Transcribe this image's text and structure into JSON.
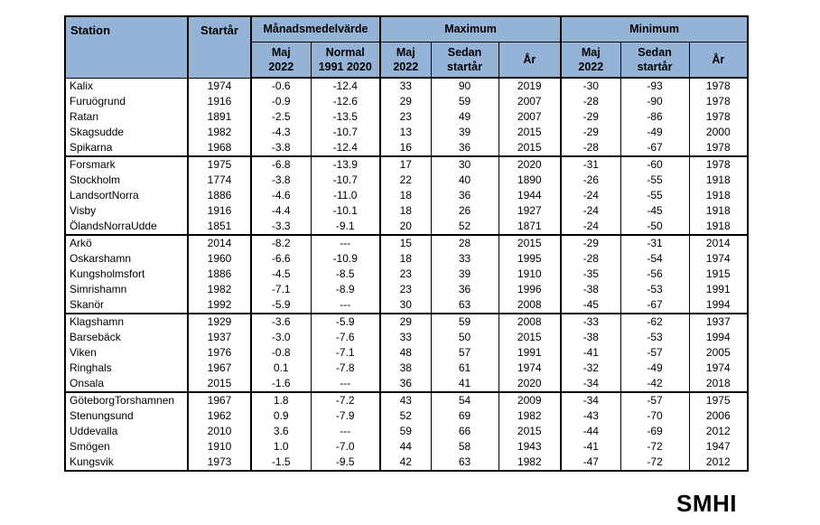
{
  "colors": {
    "header_bg": "#95b3d7",
    "border": "#000000",
    "text": "#000000",
    "page_bg": "#ffffff"
  },
  "logo": {
    "text": "SMHI"
  },
  "table": {
    "header": {
      "station": "Station",
      "start_year": "Startår",
      "groups": [
        {
          "label": "Månadsmedelvärde",
          "subcols": [
            "Maj\n2022",
            "Normal\n1991 2020"
          ]
        },
        {
          "label": "Maximum",
          "subcols": [
            "Maj\n2022",
            "Sedan\nstartår",
            "År"
          ]
        },
        {
          "label": "Minimum",
          "subcols": [
            "Maj\n2022",
            "Sedan\nstartår",
            "År"
          ]
        }
      ]
    }
  },
  "chart_data": {
    "type": "table",
    "columns": [
      "Station",
      "Startår",
      "Månadsmedelvärde Maj 2022",
      "Månadsmedelvärde Normal 1991 2020",
      "Maximum Maj 2022",
      "Maximum Sedan startår",
      "Maximum År",
      "Minimum Maj 2022",
      "Minimum Sedan startår",
      "Minimum År"
    ],
    "group_breaks": [
      5,
      10,
      15,
      20
    ],
    "rows": [
      [
        "Kalix",
        "1974",
        "-0.6",
        "-12.4",
        "33",
        "90",
        "2019",
        "-30",
        "-93",
        "1978"
      ],
      [
        "Furuögrund",
        "1916",
        "-0.9",
        "-12.6",
        "29",
        "59",
        "2007",
        "-28",
        "-90",
        "1978"
      ],
      [
        "Ratan",
        "1891",
        "-2.5",
        "-13.5",
        "23",
        "49",
        "2007",
        "-29",
        "-86",
        "1978"
      ],
      [
        "Skagsudde",
        "1982",
        "-4.3",
        "-10.7",
        "13",
        "39",
        "2015",
        "-29",
        "-49",
        "2000"
      ],
      [
        "Spikarna",
        "1968",
        "-3.8",
        "-12.4",
        "16",
        "36",
        "2015",
        "-28",
        "-67",
        "1978"
      ],
      [
        "Forsmark",
        "1975",
        "-6.8",
        "-13.9",
        "17",
        "30",
        "2020",
        "-31",
        "-60",
        "1978"
      ],
      [
        "Stockholm",
        "1774",
        "-3.8",
        "-10.7",
        "22",
        "40",
        "1890",
        "-26",
        "-55",
        "1918"
      ],
      [
        "LandsortNorra",
        "1886",
        "-4.6",
        "-11.0",
        "18",
        "36",
        "1944",
        "-24",
        "-55",
        "1918"
      ],
      [
        "Visby",
        "1916",
        "-4.4",
        "-10.1",
        "18",
        "26",
        "1927",
        "-24",
        "-45",
        "1918"
      ],
      [
        "ÖlandsNorraUdde",
        "1851",
        "-3.3",
        "-9.1",
        "20",
        "52",
        "1871",
        "-24",
        "-50",
        "1918"
      ],
      [
        "Arkö",
        "2014",
        "-8.2",
        "---",
        "15",
        "28",
        "2015",
        "-29",
        "-31",
        "2014"
      ],
      [
        "Oskarshamn",
        "1960",
        "-6.6",
        "-10.9",
        "18",
        "33",
        "1995",
        "-28",
        "-54",
        "1974"
      ],
      [
        "Kungsholmsfort",
        "1886",
        "-4.5",
        "-8.5",
        "23",
        "39",
        "1910",
        "-35",
        "-56",
        "1915"
      ],
      [
        "Simrishamn",
        "1982",
        "-7.1",
        "-8.9",
        "23",
        "36",
        "1996",
        "-38",
        "-53",
        "1991"
      ],
      [
        "Skanör",
        "1992",
        "-5.9",
        "---",
        "30",
        "63",
        "2008",
        "-45",
        "-67",
        "1994"
      ],
      [
        "Klagshamn",
        "1929",
        "-3.6",
        "-5.9",
        "29",
        "59",
        "2008",
        "-33",
        "-62",
        "1937"
      ],
      [
        "Barsebäck",
        "1937",
        "-3.0",
        "-7.6",
        "33",
        "50",
        "2015",
        "-38",
        "-53",
        "1994"
      ],
      [
        "Viken",
        "1976",
        "-0.8",
        "-7.1",
        "48",
        "57",
        "1991",
        "-41",
        "-57",
        "2005"
      ],
      [
        "Ringhals",
        "1967",
        "0.1",
        "-7.8",
        "38",
        "61",
        "1974",
        "-32",
        "-49",
        "1974"
      ],
      [
        "Onsala",
        "2015",
        "-1.6",
        "---",
        "36",
        "41",
        "2020",
        "-34",
        "-42",
        "2018"
      ],
      [
        "GöteborgTorshamnen",
        "1967",
        "1.8",
        "-7.2",
        "43",
        "54",
        "2009",
        "-34",
        "-57",
        "1975"
      ],
      [
        "Stenungsund",
        "1962",
        "0.9",
        "-7.9",
        "52",
        "69",
        "1982",
        "-43",
        "-70",
        "2006"
      ],
      [
        "Uddevalla",
        "2010",
        "3.6",
        "---",
        "59",
        "66",
        "2015",
        "-44",
        "-69",
        "2012"
      ],
      [
        "Smögen",
        "1910",
        "1.0",
        "-7.0",
        "44",
        "58",
        "1943",
        "-41",
        "-72",
        "1947"
      ],
      [
        "Kungsvik",
        "1973",
        "-1.5",
        "-9.5",
        "42",
        "63",
        "1982",
        "-47",
        "-72",
        "2012"
      ]
    ]
  }
}
